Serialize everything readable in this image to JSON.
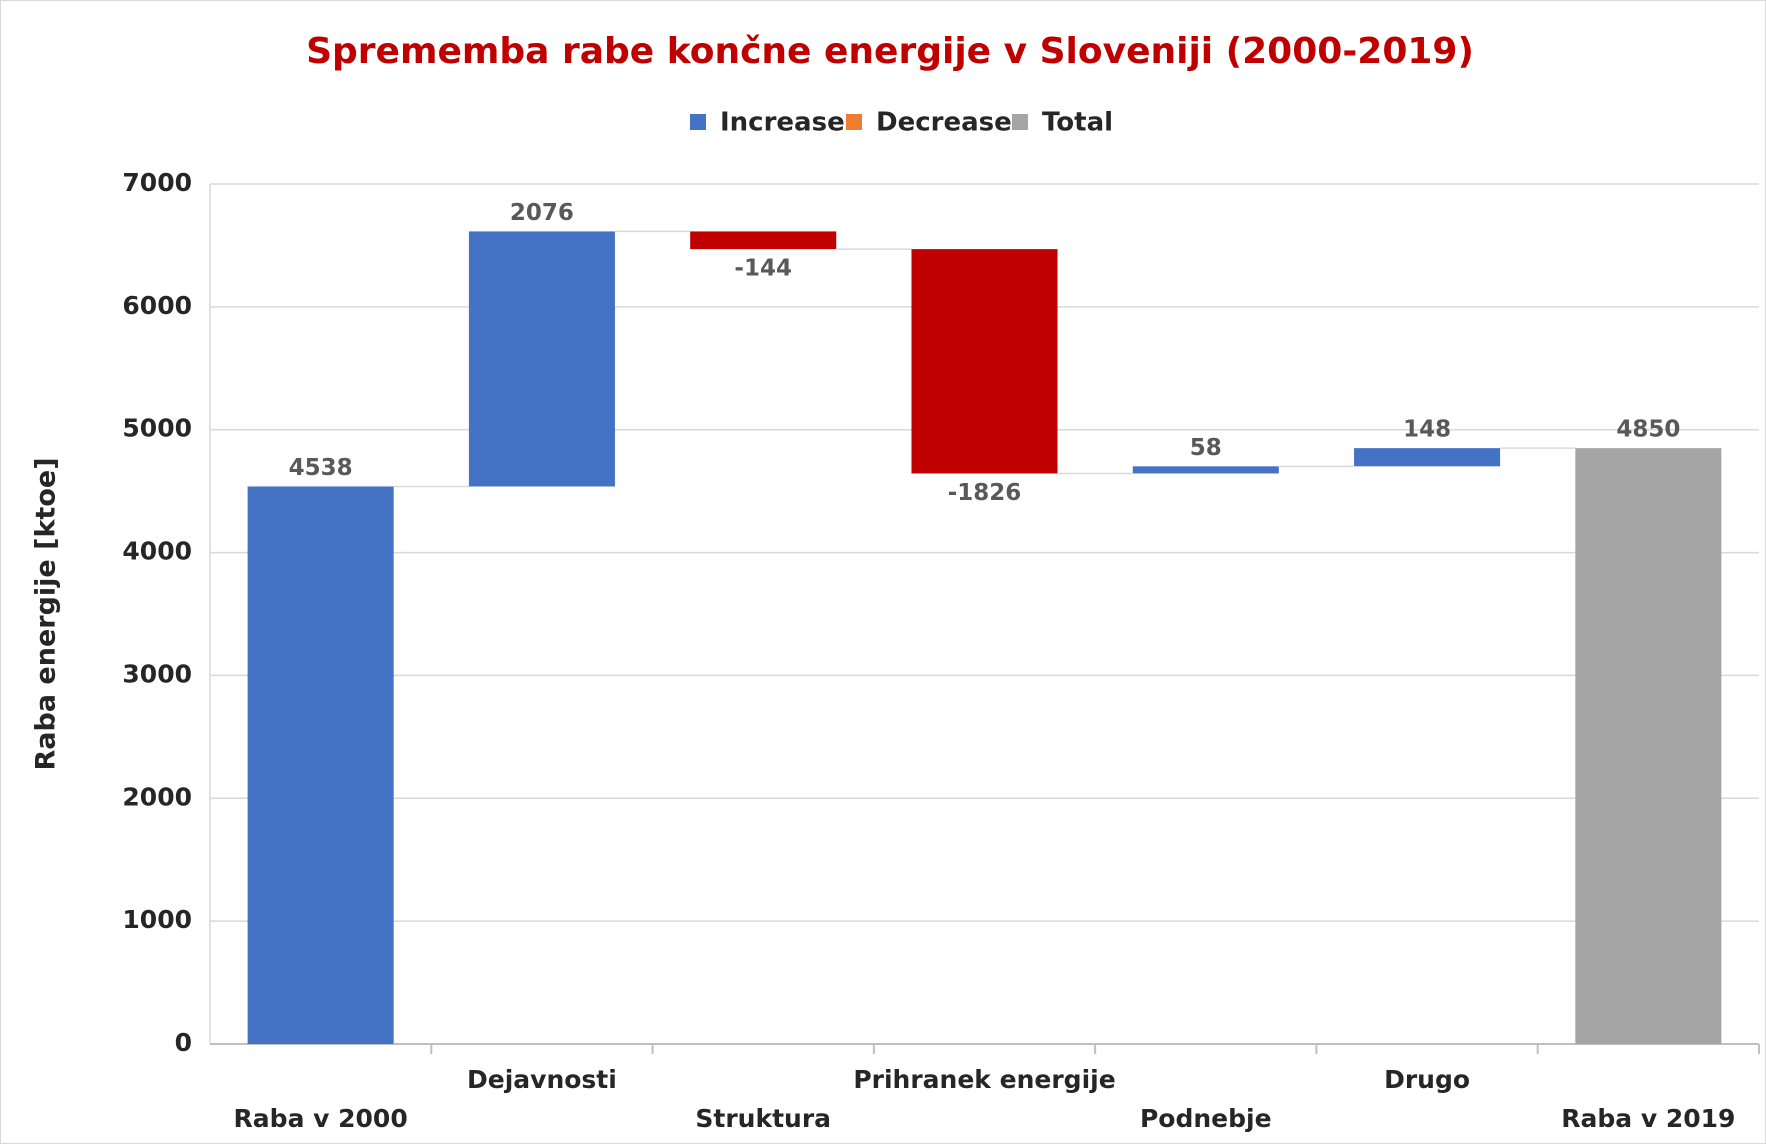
{
  "chart_data": {
    "type": "waterfall",
    "title": "Sprememba rabe končne energije v Sloveniji (2000-2019)",
    "y_label": "Raba energije [ktoe]",
    "categories": [
      "Raba v 2000",
      "Dejavnosti",
      "Struktura",
      "Prihranek energije",
      "Podnebje",
      "Drugo",
      "Raba v 2019"
    ],
    "values": [
      4538,
      2076,
      -144,
      -1826,
      58,
      148,
      4850
    ],
    "is_total": [
      false,
      false,
      false,
      false,
      false,
      false,
      true
    ],
    "colors": [
      "#4472c4",
      "#4472c4",
      "#c00000",
      "#c00000",
      "#4472c4",
      "#4472c4",
      "#a5a5a5"
    ],
    "legend": [
      {
        "name": "Increase",
        "color": "#4472c4"
      },
      {
        "name": "Decrease",
        "color": "#ed7d31"
      },
      {
        "name": "Total",
        "color": "#a5a5a5"
      }
    ],
    "ylim": [
      0,
      7000
    ],
    "yticks": [
      0,
      1000,
      2000,
      3000,
      4000,
      5000,
      6000,
      7000
    ],
    "grid": true
  }
}
